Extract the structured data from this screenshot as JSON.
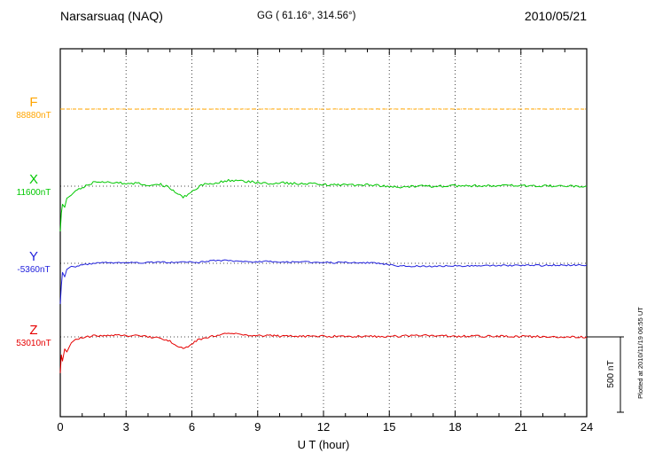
{
  "header": {
    "station": "Narsarsuaq (NAQ)",
    "coords": "GG ( 61.16°, 314.56°)",
    "date": "2010/05/21"
  },
  "axes": {
    "xlabel": "U T (hour)",
    "scale_label": "500 nT"
  },
  "footer": {
    "note": "Plotted at 2010/11/19 06:55 UT"
  },
  "chart_data": {
    "type": "line",
    "title": "Narsarsuaq (NAQ) magnetogram — 2010/05/21",
    "xlabel": "U T (hour)",
    "xlim": [
      0,
      24
    ],
    "xticks": [
      0,
      3,
      6,
      9,
      12,
      15,
      18,
      21,
      24
    ],
    "units": "nT",
    "scale_bar_nT": 500,
    "x_hours": [
      0,
      0.05,
      0.1,
      0.2,
      0.3,
      0.5,
      0.7,
      1,
      1.5,
      2,
      2.5,
      3,
      3.5,
      4,
      4.5,
      5,
      5.3,
      5.6,
      5.9,
      6.2,
      6.5,
      7,
      7.5,
      8,
      8.5,
      9,
      9.5,
      10,
      10.5,
      11,
      11.5,
      12,
      12.5,
      13,
      13.5,
      14,
      14.5,
      15,
      15.5,
      16,
      16.5,
      17,
      17.5,
      18,
      18.5,
      19,
      19.5,
      20,
      20.5,
      21,
      21.5,
      22,
      22.5,
      23,
      23.5,
      24
    ],
    "series": [
      {
        "id": "F",
        "label": "F",
        "baseline_label": "88880nT",
        "baseline_nT": 88880,
        "color": "#ffa500",
        "x": [
          0,
          24
        ],
        "offsets_nT": [
          0,
          0
        ]
      },
      {
        "id": "X",
        "label": "X",
        "baseline_label": "11600nT",
        "baseline_nT": 11600,
        "color": "#00c800",
        "offsets_nT": [
          -300,
          -180,
          -120,
          -140,
          -80,
          -60,
          -30,
          -10,
          25,
          30,
          25,
          15,
          20,
          10,
          15,
          -10,
          -55,
          -70,
          -50,
          -15,
          10,
          20,
          35,
          40,
          30,
          25,
          20,
          22,
          18,
          15,
          18,
          12,
          10,
          12,
          8,
          10,
          5,
          0,
          -5,
          -3,
          0,
          -2,
          0,
          2,
          0,
          3,
          5,
          3,
          5,
          2,
          3,
          0,
          2,
          0,
          2,
          0
        ]
      },
      {
        "id": "Y",
        "label": "Y",
        "baseline_label": "-5360nT",
        "baseline_nT": -5360,
        "color": "#2222dd",
        "offsets_nT": [
          -270,
          -150,
          -60,
          -90,
          -40,
          -20,
          -25,
          -10,
          0,
          5,
          3,
          5,
          2,
          5,
          8,
          5,
          8,
          6,
          8,
          6,
          10,
          18,
          20,
          15,
          12,
          10,
          12,
          10,
          8,
          10,
          6,
          8,
          4,
          6,
          2,
          4,
          0,
          -10,
          -18,
          -20,
          -18,
          -20,
          -18,
          -16,
          -18,
          -15,
          -16,
          -14,
          -15,
          -14,
          -13,
          -14,
          -12,
          -13,
          -12,
          -12
        ]
      },
      {
        "id": "Z",
        "label": "Z",
        "baseline_label": "53010nT",
        "baseline_nT": 53010,
        "color": "#e60000",
        "offsets_nT": [
          -240,
          -120,
          -160,
          -80,
          -100,
          -40,
          -15,
          -5,
          8,
          10,
          12,
          6,
          8,
          0,
          -5,
          -25,
          -60,
          -72,
          -60,
          -25,
          -8,
          5,
          25,
          18,
          8,
          6,
          8,
          5,
          6,
          4,
          5,
          3,
          4,
          2,
          3,
          2,
          3,
          2,
          5,
          10,
          12,
          9,
          7,
          5,
          4,
          5,
          3,
          4,
          2,
          3,
          2,
          2,
          1,
          2,
          1,
          0
        ]
      }
    ]
  }
}
